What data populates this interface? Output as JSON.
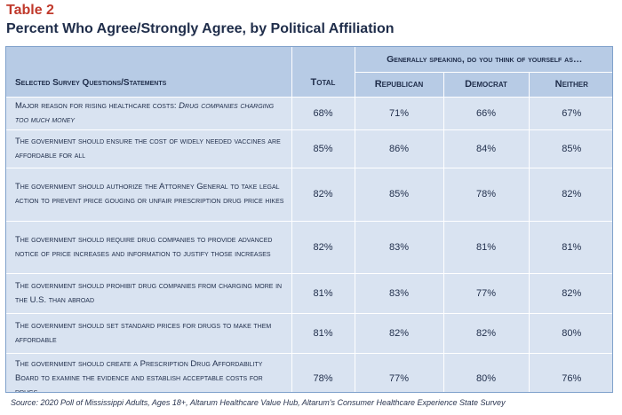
{
  "table_number": "Table 2",
  "title": "Percent Who Agree/Strongly Agree, by Political Affiliation",
  "header": {
    "question_col": "Selected Survey Questions/Statements",
    "total_col": "Total",
    "group_label": "Generally speaking, do you think of yourself as…",
    "groups": [
      "Republican",
      "Democrat",
      "Neither"
    ]
  },
  "rows": [
    {
      "question_plain": "Major reason for rising healthcare costs: ",
      "question_italic": "Drug companies charging too much money",
      "total": "68%",
      "republican": "71%",
      "democrat": "66%",
      "neither": "67%"
    },
    {
      "question_plain": "The government should ensure the cost of widely needed vaccines are affordable for all",
      "question_italic": "",
      "total": "85%",
      "republican": "86%",
      "democrat": "84%",
      "neither": "85%"
    },
    {
      "question_plain": "The government should authorize the Attorney General to take legal action to prevent price gouging or unfair prescription drug price hikes",
      "question_italic": "",
      "total": "82%",
      "republican": "85%",
      "democrat": "78%",
      "neither": "82%"
    },
    {
      "question_plain": "The government should require drug companies to provide advanced notice of price increases and information to justify those increases",
      "question_italic": "",
      "total": "82%",
      "republican": "83%",
      "democrat": "81%",
      "neither": "81%"
    },
    {
      "question_plain": "The government should prohibit drug companies from charging more in the U.S. than abroad",
      "question_italic": "",
      "total": "81%",
      "republican": "83%",
      "democrat": "77%",
      "neither": "82%"
    },
    {
      "question_plain": "The government should set standard prices for drugs to make them affordable",
      "question_italic": "",
      "total": "81%",
      "republican": "82%",
      "democrat": "82%",
      "neither": "80%"
    },
    {
      "question_plain": "The government should create a Prescription Drug Affordability Board to examine the evidence and establish acceptable costs for drugs",
      "question_italic": "",
      "total": "78%",
      "republican": "77%",
      "democrat": "80%",
      "neither": "76%"
    }
  ],
  "source": "Source: 2020 Poll of Mississippi Adults, Ages 18+, Altarum Healthcare Value Hub, Altarum's Consumer Healthcare Experience State Survey"
}
